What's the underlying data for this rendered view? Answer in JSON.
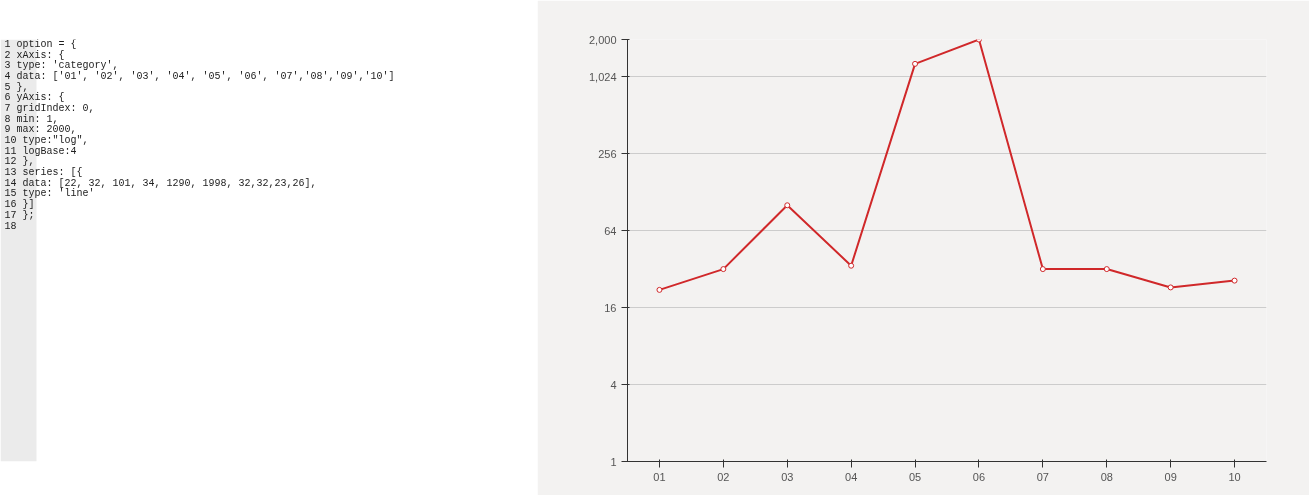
{
  "chart_data": {
    "type": "line",
    "categories": [
      "01",
      "02",
      "03",
      "04",
      "05",
      "06",
      "07",
      "08",
      "09",
      "10"
    ],
    "series": [
      {
        "color": "#d0282a",
        "values": [
          22,
          32,
          101,
          34,
          1290,
          1998,
          32,
          32,
          23,
          26
        ]
      }
    ],
    "log": "y",
    "ylim": [
      1,
      2000
    ],
    "yticks": [
      1,
      4,
      16,
      {
        "value": 64,
        "label": "64"
      },
      256,
      {
        "value": 1024,
        "label": "1,024"
      },
      {
        "value": 2000,
        "label": "2,000"
      }
    ],
    "grid": "y",
    "marker": "circle",
    "line_style": "solid",
    "annotations": [
      "1  option = {",
      "2      xAxis: {",
      "3          type: 'category',",
      "4          data: ['01', '02', '03', '04', '05', '06', '07','08','09','10']",
      "5      },",
      "6      yAxis: {",
      "7              gridIndex: 0,",
      "8              min: 1,",
      "9              max: 2000,",
      "10             type:\"log\",",
      "11             logBase:4",
      "12     },",
      "13     series: [{",
      "14         data: [22, 32, 101, 34, 1290, 1998, 32,32,23,26],",
      "15         type: 'line'",
      "16     }]",
      "17 };",
      "18"
    ]
  }
}
